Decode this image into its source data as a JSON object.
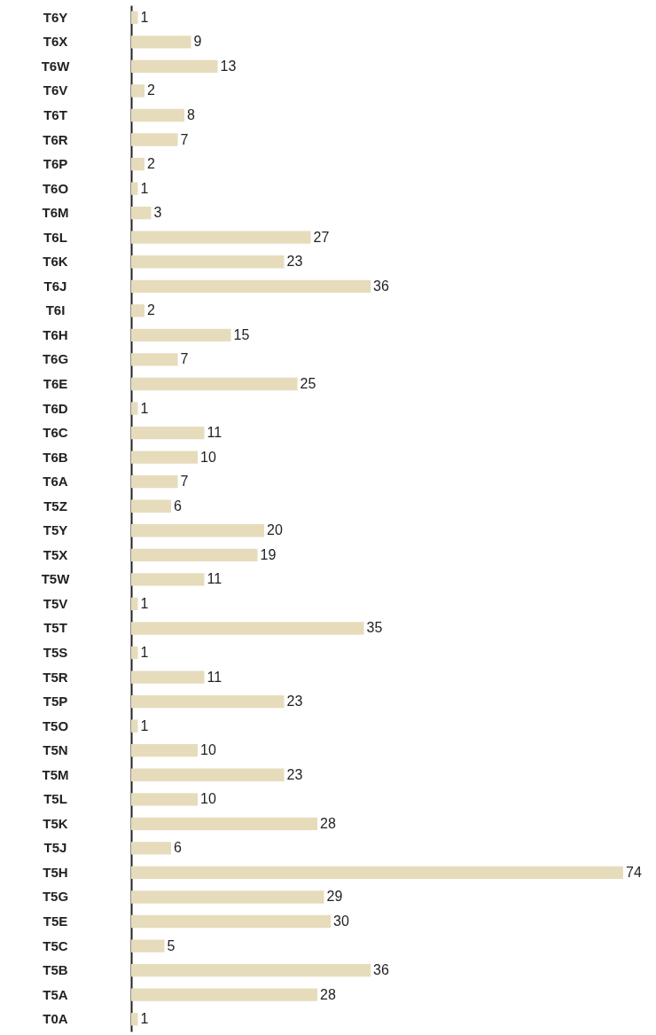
{
  "chart_data": {
    "type": "bar",
    "orientation": "horizontal",
    "data_labels": true,
    "tick_labels": "y",
    "color": "#e6dcbc",
    "categories": [
      "T6Y",
      "T6X",
      "T6W",
      "T6V",
      "T6T",
      "T6R",
      "T6P",
      "T6O",
      "T6M",
      "T6L",
      "T6K",
      "T6J",
      "T6I",
      "T6H",
      "T6G",
      "T6E",
      "T6D",
      "T6C",
      "T6B",
      "T6A",
      "T5Z",
      "T5Y",
      "T5X",
      "T5W",
      "T5V",
      "T5T",
      "T5S",
      "T5R",
      "T5P",
      "T5O",
      "T5N",
      "T5M",
      "T5L",
      "T5K",
      "T5J",
      "T5H",
      "T5G",
      "T5E",
      "T5C",
      "T5B",
      "T5A",
      "T0A"
    ],
    "values": [
      1,
      9,
      13,
      2,
      8,
      7,
      2,
      1,
      3,
      27,
      23,
      36,
      2,
      15,
      7,
      25,
      1,
      11,
      10,
      7,
      6,
      20,
      19,
      11,
      1,
      35,
      1,
      11,
      23,
      1,
      10,
      23,
      10,
      28,
      6,
      74,
      29,
      30,
      5,
      36,
      28,
      1
    ]
  }
}
